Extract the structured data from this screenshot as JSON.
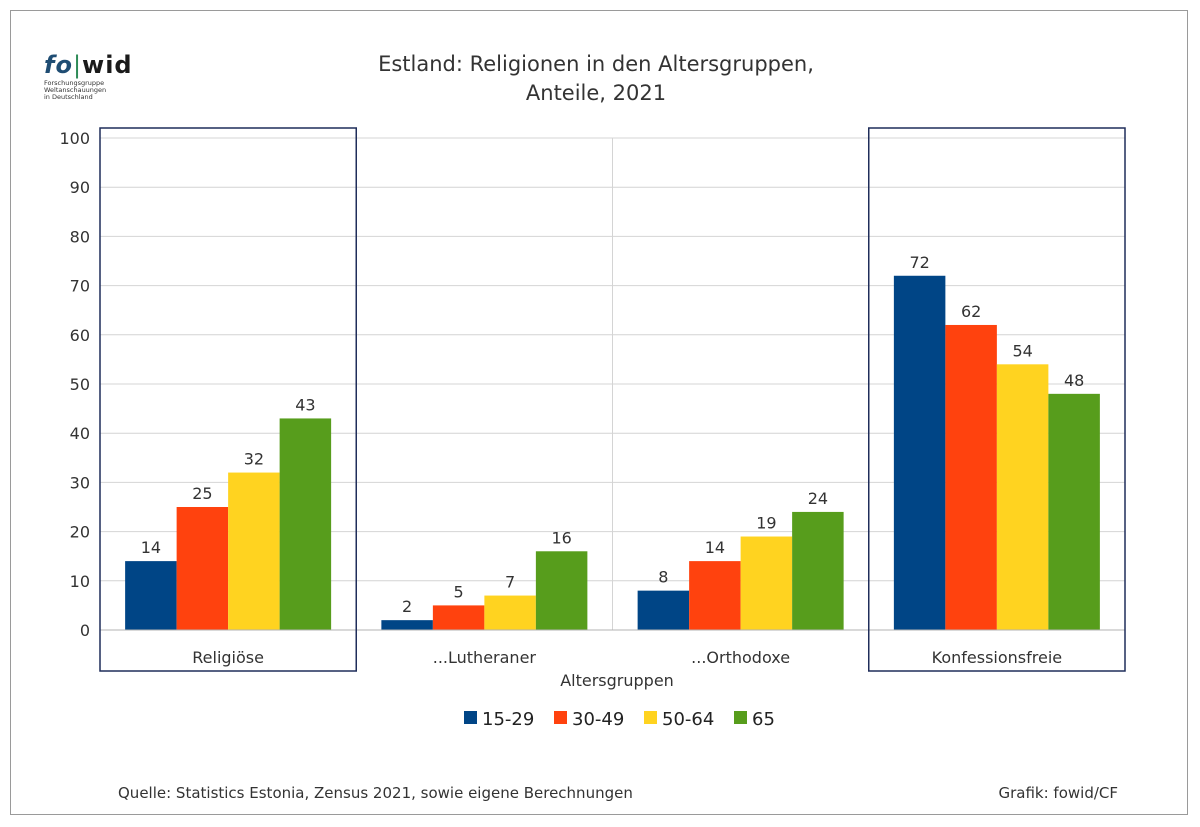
{
  "logo": {
    "mark_fo": "fo",
    "mark_sep": "|",
    "mark_wid": "wid",
    "line1": "Forschungsgruppe",
    "line2": "Weltanschauungen",
    "line3": "in Deutschland"
  },
  "footer": {
    "source": "Quelle: Statistics Estonia, Zensus 2021, sowie eigene Berechnungen",
    "credit": "Grafik: fowid/CF"
  },
  "chart_data": {
    "type": "bar",
    "title_lines": [
      "Estland: Religionen in den Altersgruppen,",
      "Anteile, 2021"
    ],
    "xlabel": "Altersgruppen",
    "ylabel": "",
    "ylim": [
      0,
      100
    ],
    "yticks": [
      0,
      10,
      20,
      30,
      40,
      50,
      60,
      70,
      80,
      90,
      100
    ],
    "grid": true,
    "legend_position": "bottom-center",
    "categories": [
      "Religiöse",
      "...Lutheraner",
      "...Orthodoxe",
      "Konfessionsfreie"
    ],
    "highlighted_categories": [
      "Religiöse",
      "Konfessionsfreie"
    ],
    "series": [
      {
        "name": "15-29",
        "color": "#004586",
        "values": [
          14,
          2,
          8,
          72
        ]
      },
      {
        "name": "30-49",
        "color": "#ff420e",
        "values": [
          25,
          5,
          14,
          62
        ]
      },
      {
        "name": "50-64",
        "color": "#ffd320",
        "values": [
          32,
          7,
          19,
          54
        ]
      },
      {
        "name": "65",
        "color": "#579d1c",
        "values": [
          43,
          16,
          24,
          48
        ]
      }
    ]
  }
}
